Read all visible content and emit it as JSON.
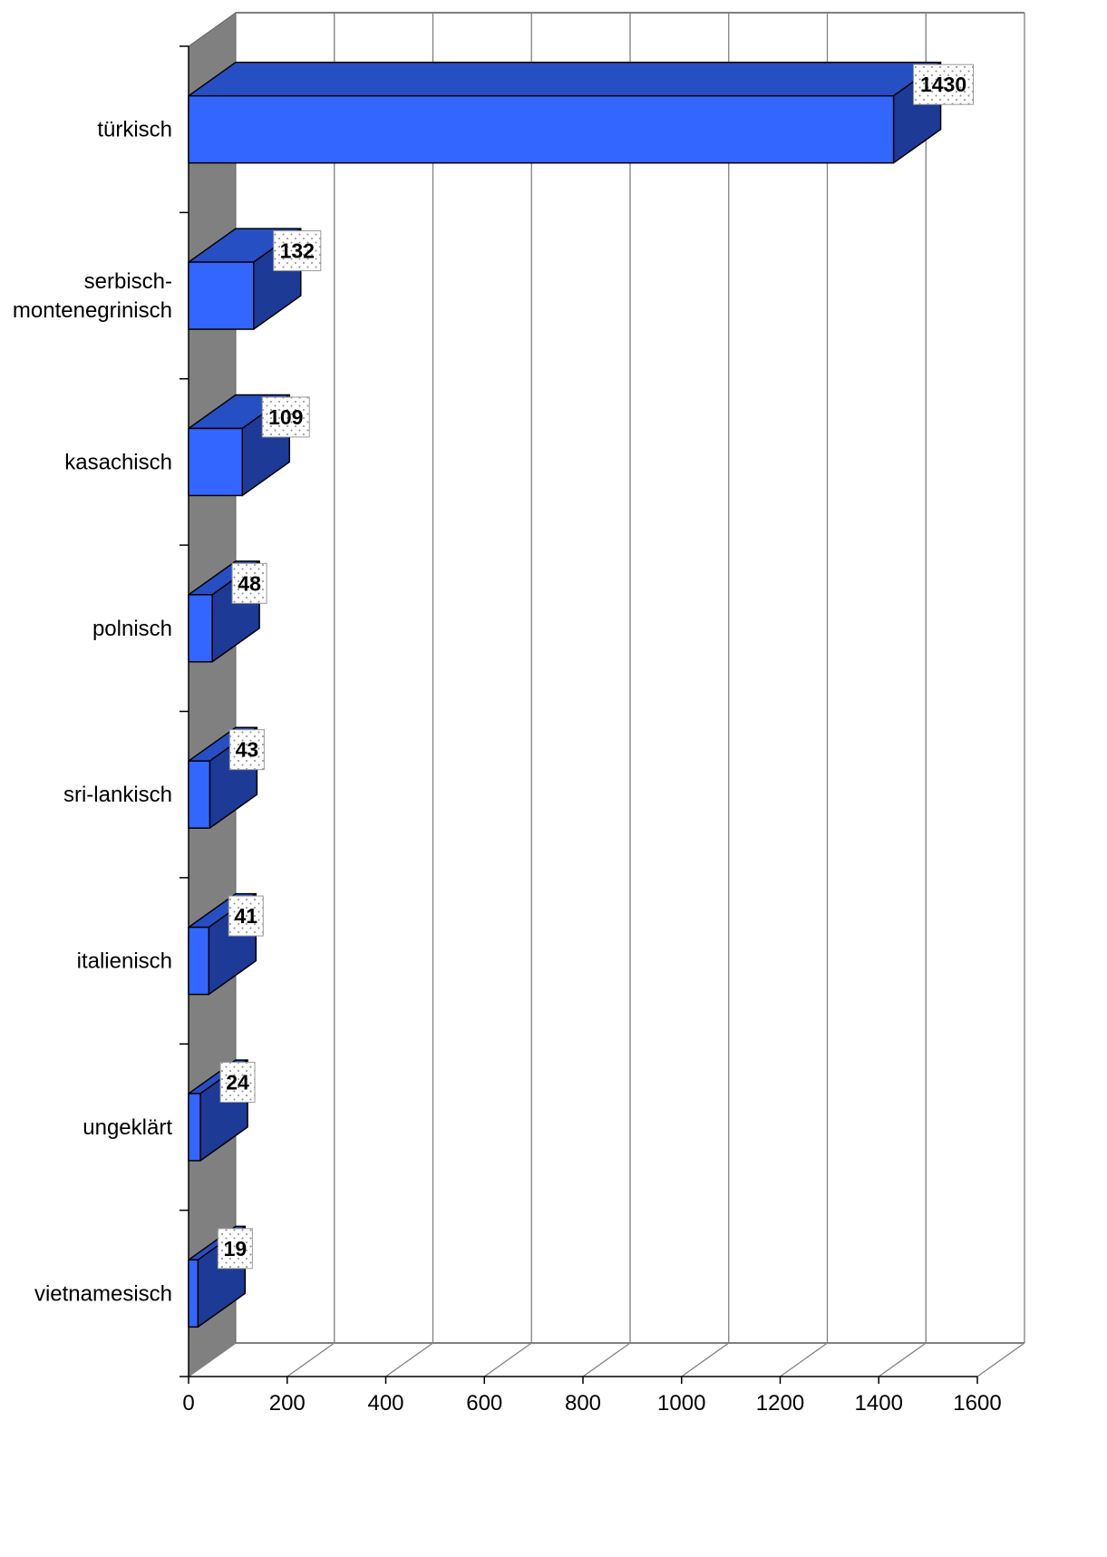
{
  "colors": {
    "bar_front": "#3366ff",
    "bar_top": "#264fc4",
    "bar_side": "#1c3a96",
    "back_wall": "#ffffff",
    "side_wall": "#808080",
    "gridline": "#808080",
    "floor_line": "#808080",
    "label_box_fill": "#ffffff",
    "label_box_dots": "#888888"
  },
  "chart_data": {
    "type": "bar",
    "orientation": "horizontal",
    "style": "3d",
    "categories": [
      "türkisch",
      "serbisch-montenegrinisch",
      "kasachisch",
      "polnisch",
      "sri-lankisch",
      "italienisch",
      "ungeklärt",
      "vietnamesisch"
    ],
    "category_lines": [
      [
        "türkisch"
      ],
      [
        "serbisch-",
        "montenegrinisch"
      ],
      [
        "kasachisch"
      ],
      [
        "polnisch"
      ],
      [
        "sri-lankisch"
      ],
      [
        "italienisch"
      ],
      [
        "ungeklärt"
      ],
      [
        "vietnamesisch"
      ]
    ],
    "values": [
      1430,
      132,
      109,
      48,
      43,
      41,
      24,
      19
    ],
    "data_labels": [
      "1430",
      "132",
      "109",
      "48",
      "43",
      "41",
      "24",
      "19"
    ],
    "xlim": [
      0,
      1600
    ],
    "xticks": [
      0,
      200,
      400,
      600,
      800,
      1000,
      1200,
      1400,
      1600
    ],
    "xtick_labels": [
      "0",
      "200",
      "400",
      "600",
      "800",
      "1000",
      "1200",
      "1400",
      "1600"
    ],
    "grid": true,
    "legend": "none",
    "title": "",
    "xlabel": "",
    "ylabel": ""
  }
}
